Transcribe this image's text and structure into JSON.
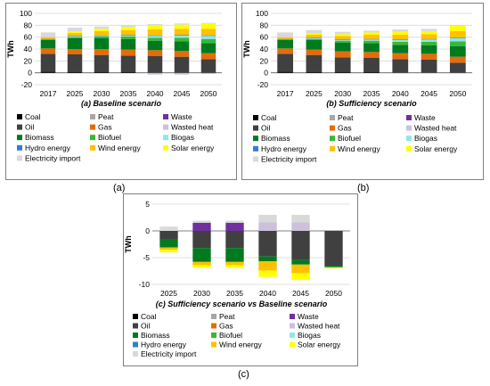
{
  "captions": {
    "a": "(a)",
    "b": "(b)",
    "c": "(c)"
  },
  "legend": [
    {
      "name": "Coal",
      "color": "#000000"
    },
    {
      "name": "Peat",
      "color": "#a6a6a6"
    },
    {
      "name": "Waste",
      "color": "#7030a0"
    },
    {
      "name": "Oil",
      "color": "#404040"
    },
    {
      "name": "Gas",
      "color": "#e46c0a"
    },
    {
      "name": "Wasted heat",
      "color": "#ccc0da"
    },
    {
      "name": "Biomass",
      "color": "#007a1f"
    },
    {
      "name": "Biofuel",
      "color": "#38b838"
    },
    {
      "name": "Biogas",
      "color": "#8ee8e8"
    },
    {
      "name": "Hydro energy",
      "color": "#2e7fd6"
    },
    {
      "name": "Wind energy",
      "color": "#ffc000"
    },
    {
      "name": "Solar energy",
      "color": "#ffff00"
    },
    {
      "name": "Electricity import",
      "color": "#d9d9d9"
    }
  ],
  "chart_data": [
    {
      "type": "bar",
      "stacked": true,
      "title": "(a) Baseline scenario",
      "ylabel": "TWh",
      "ylim": [
        -20,
        100
      ],
      "yticks": [
        -20,
        0,
        20,
        40,
        60,
        80,
        100
      ],
      "categories": [
        "2017",
        "2025",
        "2030",
        "2035",
        "2040",
        "2045",
        "2050"
      ],
      "series": [
        {
          "name": "Coal",
          "values": [
            2,
            1,
            1,
            1,
            1,
            1,
            1
          ]
        },
        {
          "name": "Peat",
          "values": [
            0,
            0,
            0,
            0,
            0,
            0,
            0
          ]
        },
        {
          "name": "Waste",
          "values": [
            0,
            0,
            0,
            0,
            0,
            0,
            0
          ]
        },
        {
          "name": "Oil",
          "values": [
            30,
            30,
            29,
            28,
            27,
            26,
            22
          ]
        },
        {
          "name": "Gas",
          "values": [
            9,
            9,
            10,
            10,
            10,
            10,
            10
          ]
        },
        {
          "name": "Wasted heat",
          "values": [
            0,
            0,
            0,
            0,
            -3,
            -3,
            -2
          ]
        },
        {
          "name": "Biomass",
          "values": [
            14,
            18,
            18,
            18,
            16,
            16,
            17
          ]
        },
        {
          "name": "Biofuel",
          "values": [
            1,
            2,
            3,
            4,
            5,
            6,
            7
          ]
        },
        {
          "name": "Biogas",
          "values": [
            0,
            1,
            1,
            2,
            3,
            4,
            5
          ]
        },
        {
          "name": "Hydro energy",
          "values": [
            1,
            1,
            1,
            1,
            1,
            1,
            1
          ]
        },
        {
          "name": "Wind energy",
          "values": [
            3,
            5,
            7,
            8,
            10,
            10,
            11
          ]
        },
        {
          "name": "Solar energy",
          "values": [
            0,
            3,
            4,
            5,
            7,
            7,
            9
          ]
        },
        {
          "name": "Electricity import",
          "values": [
            8,
            6,
            4,
            3,
            2,
            2,
            1
          ]
        }
      ]
    },
    {
      "type": "bar",
      "stacked": true,
      "title": "(b) Sufficiency scenario",
      "ylabel": "TWh",
      "ylim": [
        -20,
        100
      ],
      "yticks": [
        -20,
        0,
        20,
        40,
        60,
        80,
        100
      ],
      "categories": [
        "2017",
        "2025",
        "2030",
        "2035",
        "2040",
        "2045",
        "2050"
      ],
      "series": [
        {
          "name": "Coal",
          "values": [
            2,
            1,
            1,
            1,
            1,
            1,
            1
          ]
        },
        {
          "name": "Peat",
          "values": [
            0,
            0,
            0,
            0,
            0,
            0,
            0
          ]
        },
        {
          "name": "Waste",
          "values": [
            0,
            0,
            0,
            0,
            0,
            0,
            0
          ]
        },
        {
          "name": "Oil",
          "values": [
            30,
            29,
            25,
            24,
            22,
            21,
            16
          ]
        },
        {
          "name": "Gas",
          "values": [
            9,
            9,
            10,
            10,
            10,
            10,
            10
          ]
        },
        {
          "name": "Wasted heat",
          "values": [
            0,
            0,
            0,
            0,
            -1,
            -1,
            -1
          ]
        },
        {
          "name": "Biomass",
          "values": [
            14,
            16,
            15,
            15,
            14,
            14,
            18
          ]
        },
        {
          "name": "Biofuel",
          "values": [
            1,
            2,
            3,
            4,
            5,
            6,
            8
          ]
        },
        {
          "name": "Biogas",
          "values": [
            0,
            1,
            1,
            2,
            3,
            4,
            5
          ]
        },
        {
          "name": "Hydro energy",
          "values": [
            1,
            1,
            1,
            1,
            1,
            1,
            1
          ]
        },
        {
          "name": "Wind energy",
          "values": [
            3,
            5,
            6,
            7,
            8,
            8,
            11
          ]
        },
        {
          "name": "Solar energy",
          "values": [
            0,
            2,
            3,
            4,
            5,
            5,
            9
          ]
        },
        {
          "name": "Electricity import",
          "values": [
            8,
            6,
            4,
            3,
            4,
            4,
            1
          ]
        }
      ]
    },
    {
      "type": "bar",
      "stacked": true,
      "title": "(c) Sufficiency scenario vs Baseline scenario",
      "ylabel": "TWh",
      "ylim": [
        -10,
        5
      ],
      "yticks": [
        -10,
        -5,
        0,
        5
      ],
      "categories": [
        "2025",
        "2030",
        "2035",
        "2040",
        "2045",
        "2050"
      ],
      "series": [
        {
          "name": "Coal",
          "values": [
            0,
            0,
            0,
            0,
            0,
            0
          ]
        },
        {
          "name": "Peat",
          "values": [
            0,
            0,
            0,
            0,
            0,
            0
          ]
        },
        {
          "name": "Waste",
          "values": [
            0,
            1.5,
            1.5,
            0,
            0,
            0
          ]
        },
        {
          "name": "Oil",
          "values": [
            -1.5,
            -3.2,
            -3.2,
            -4.8,
            -5.4,
            -6.5
          ]
        },
        {
          "name": "Gas",
          "values": [
            0,
            0,
            0,
            0,
            0,
            0
          ]
        },
        {
          "name": "Wasted heat",
          "values": [
            0,
            0,
            0,
            1.6,
            1.6,
            0
          ]
        },
        {
          "name": "Biomass",
          "values": [
            -1.6,
            -2.6,
            -2.6,
            -0.9,
            -0.9,
            -0.3
          ]
        },
        {
          "name": "Biofuel",
          "values": [
            0,
            0,
            0,
            0,
            0,
            0
          ]
        },
        {
          "name": "Biogas",
          "values": [
            0,
            0,
            0,
            0,
            0,
            0
          ]
        },
        {
          "name": "Hydro energy",
          "values": [
            0,
            0,
            0,
            0,
            0,
            0
          ]
        },
        {
          "name": "Wind energy",
          "values": [
            -0.4,
            -0.6,
            -0.6,
            -1.7,
            -1.6,
            0
          ]
        },
        {
          "name": "Solar energy",
          "values": [
            -0.5,
            -0.5,
            -0.5,
            -1.2,
            -1.3,
            -0.2
          ]
        },
        {
          "name": "Electricity import",
          "values": [
            0.8,
            0.4,
            0.4,
            1.4,
            1.4,
            0
          ]
        }
      ]
    }
  ]
}
